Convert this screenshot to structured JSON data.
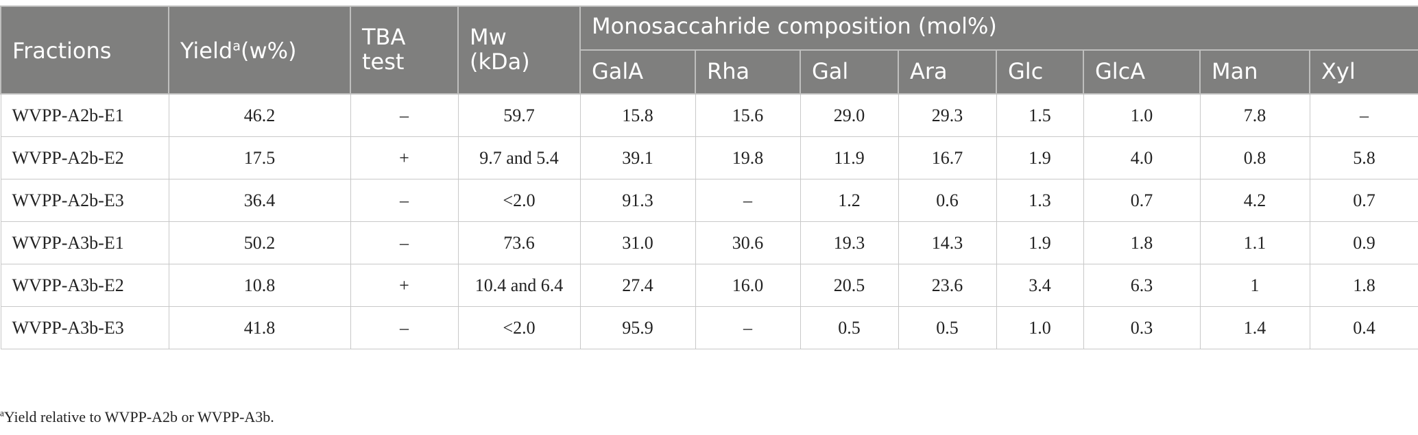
{
  "headers": {
    "fractions": "Fractions",
    "yield_main": "Yield",
    "yield_sup": "a",
    "yield_unit": "(w%)",
    "tba": "TBA test",
    "mw": "Mw (kDa)",
    "mono_group": "Monosaccahride composition (mol%)",
    "mono": [
      "GalA",
      "Rha",
      "Gal",
      "Ara",
      "Glc",
      "GlcA",
      "Man",
      "Xyl"
    ]
  },
  "rows": [
    {
      "fraction": "WVPP-A2b-E1",
      "yield": "46.2",
      "tba": "–",
      "mw": "59.7",
      "vals": [
        "15.8",
        "15.6",
        "29.0",
        "29.3",
        "1.5",
        "1.0",
        "7.8",
        "–"
      ]
    },
    {
      "fraction": "WVPP-A2b-E2",
      "yield": "17.5",
      "tba": "+",
      "mw": "9.7 and 5.4",
      "vals": [
        "39.1",
        "19.8",
        "11.9",
        "16.7",
        "1.9",
        "4.0",
        "0.8",
        "5.8"
      ]
    },
    {
      "fraction": "WVPP-A2b-E3",
      "yield": "36.4",
      "tba": "–",
      "mw": "<2.0",
      "vals": [
        "91.3",
        "–",
        "1.2",
        "0.6",
        "1.3",
        "0.7",
        "4.2",
        "0.7"
      ]
    },
    {
      "fraction": "WVPP-A3b-E1",
      "yield": "50.2",
      "tba": "–",
      "mw": "73.6",
      "vals": [
        "31.0",
        "30.6",
        "19.3",
        "14.3",
        "1.9",
        "1.8",
        "1.1",
        "0.9"
      ]
    },
    {
      "fraction": "WVPP-A3b-E2",
      "yield": "10.8",
      "tba": "+",
      "mw": "10.4 and 6.4",
      "vals": [
        "27.4",
        "16.0",
        "20.5",
        "23.6",
        "3.4",
        "6.3",
        "1",
        "1.8"
      ]
    },
    {
      "fraction": "WVPP-A3b-E3",
      "yield": "41.8",
      "tba": "–",
      "mw": "<2.0",
      "vals": [
        "95.9",
        "–",
        "0.5",
        "0.5",
        "1.0",
        "0.3",
        "1.4",
        "0.4"
      ]
    }
  ],
  "footnote": {
    "sup": "a",
    "text": "Yield relative to WVPP-A2b or WVPP-A3b."
  }
}
